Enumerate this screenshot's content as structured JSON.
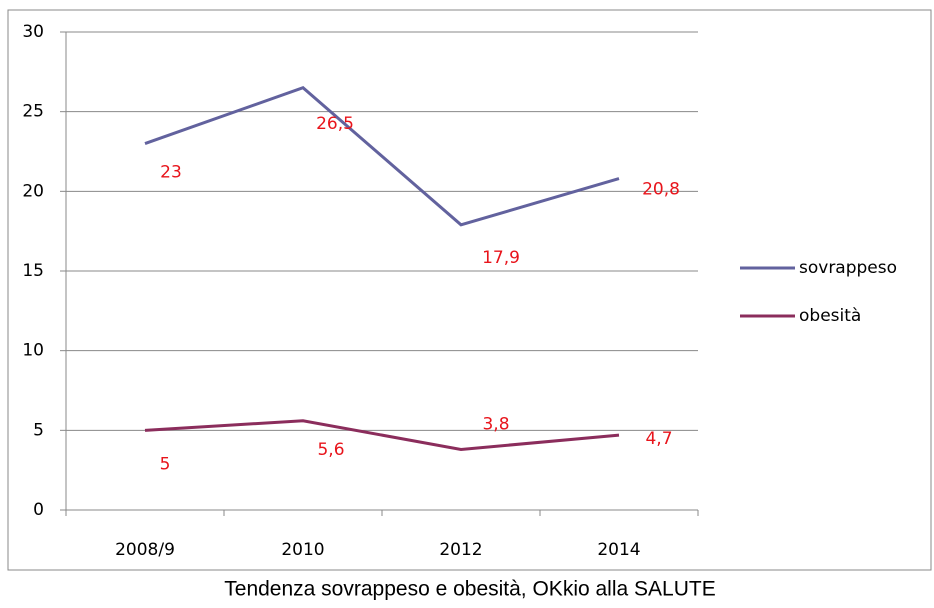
{
  "chart_data": {
    "type": "line",
    "caption": "Tendenza sovrappeso e obesità, OKkio alla SALUTE",
    "categories": [
      "2008/9",
      "2010",
      "2012",
      "2014"
    ],
    "series": [
      {
        "name": "sovrappeso",
        "color": "#62629e",
        "values": [
          23,
          26.5,
          17.9,
          20.8
        ],
        "value_labels": [
          "23",
          "26,5",
          "17,9",
          "20,8"
        ]
      },
      {
        "name": "obesità",
        "color": "#8b2d5c",
        "values": [
          5,
          5.6,
          3.8,
          4.7
        ],
        "value_labels": [
          "5",
          "5,6",
          "3,8",
          "4,7"
        ]
      }
    ],
    "label_color": "#e8141b",
    "ylim": [
      0,
      30
    ],
    "yticks": [
      0,
      5,
      10,
      15,
      20,
      25,
      30
    ],
    "grid": true,
    "legend": "right"
  }
}
